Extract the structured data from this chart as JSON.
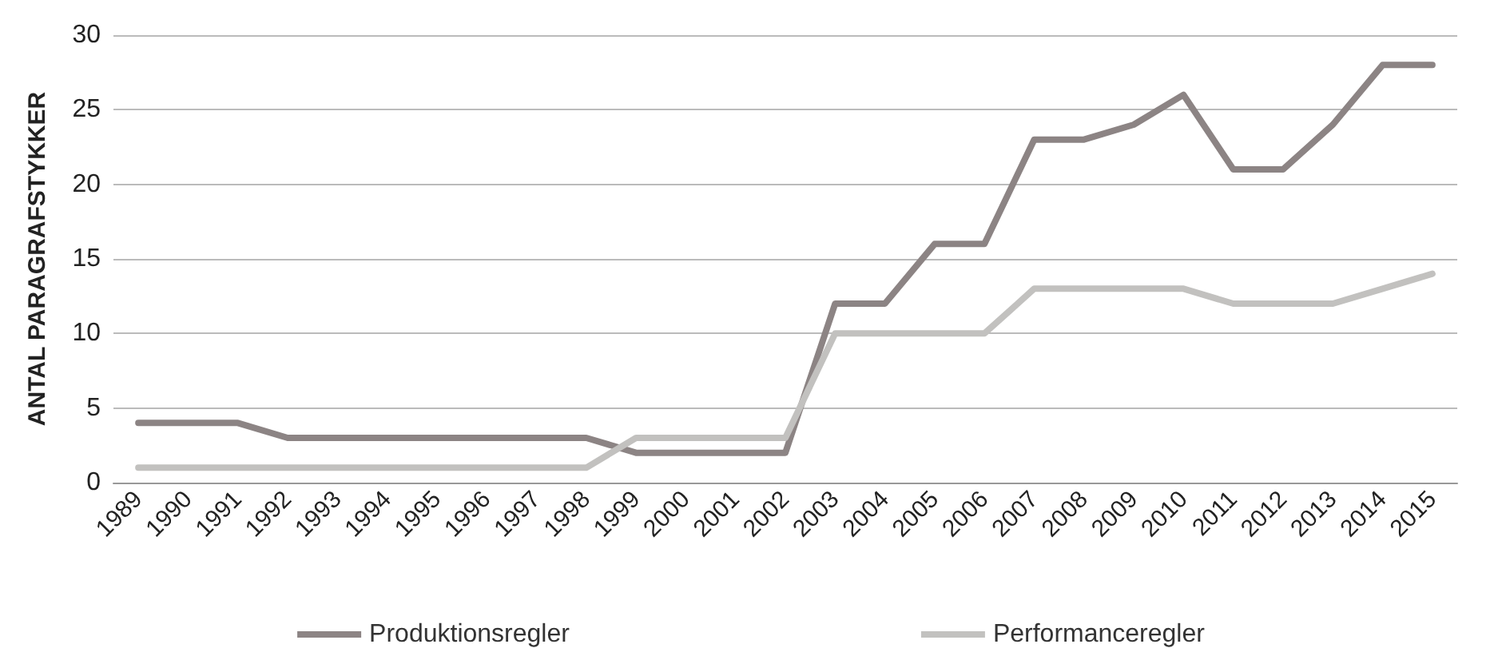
{
  "chart_data": {
    "type": "line",
    "ylabel": "ANTAL PARAGRAFSTYKKER",
    "categories": [
      "1989",
      "1990",
      "1991",
      "1992",
      "1993",
      "1994",
      "1995",
      "1996",
      "1997",
      "1998",
      "1999",
      "2000",
      "2001",
      "2002",
      "2003",
      "2004",
      "2005",
      "2006",
      "2007",
      "2008",
      "2009",
      "2010",
      "2011",
      "2012",
      "2013",
      "2014",
      "2015"
    ],
    "series": [
      {
        "name": "Produktionsregler",
        "color": "#8c8484",
        "values": [
          4,
          4,
          4,
          3,
          3,
          3,
          3,
          3,
          3,
          3,
          2,
          2,
          2,
          2,
          12,
          12,
          16,
          16,
          23,
          23,
          24,
          26,
          21,
          21,
          24,
          28,
          28
        ]
      },
      {
        "name": "Performanceregler",
        "color": "#c2c1bf",
        "values": [
          1,
          1,
          1,
          1,
          1,
          1,
          1,
          1,
          1,
          1,
          3,
          3,
          3,
          3,
          10,
          10,
          10,
          10,
          13,
          13,
          13,
          13,
          12,
          12,
          12,
          13,
          14
        ]
      }
    ],
    "ylim": [
      0,
      30
    ],
    "yticks": [
      0,
      5,
      10,
      15,
      20,
      25,
      30
    ],
    "grid": "y",
    "legend": "bottom",
    "marker": "none",
    "line_style": "solid"
  }
}
